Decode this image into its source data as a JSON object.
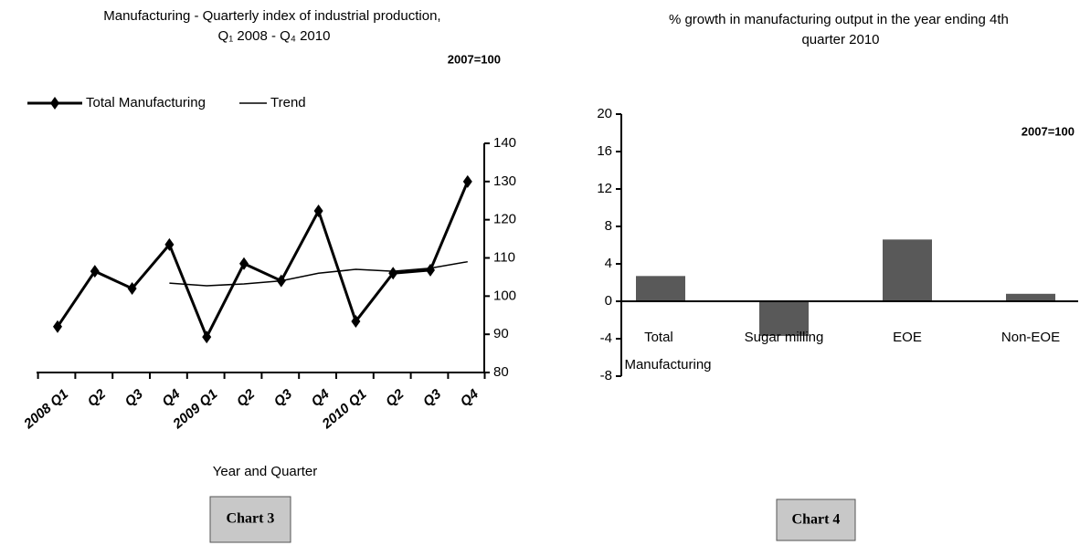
{
  "chart_data": [
    {
      "type": "line",
      "title": "Manufacturing - Quarterly index of industrial production, Q₁ 2008 - Q₄ 2010",
      "annotation": "2007=100",
      "xlabel": "Year and Quarter",
      "caption": "Chart 3",
      "categories": [
        "2008 Q1",
        "Q2",
        "Q3",
        "Q4",
        "2009 Q1",
        "Q2",
        "Q3",
        "Q4",
        "2010 Q1",
        "Q2",
        "Q3",
        "Q4"
      ],
      "series": [
        {
          "name": "Total Manufacturing",
          "color": "#000000",
          "values": [
            92,
            106.5,
            102,
            113.5,
            89.3,
            108.5,
            104,
            122.3,
            93.4,
            106,
            106.8,
            130
          ]
        },
        {
          "name": "Trend",
          "color": "#000000",
          "values": [
            null,
            null,
            null,
            103.4,
            102.7,
            103.2,
            104,
            106,
            107,
            106.5,
            107.3,
            109
          ]
        }
      ],
      "ylim": [
        80,
        140
      ],
      "yticks": [
        80,
        90,
        100,
        110,
        120,
        130,
        140
      ]
    },
    {
      "type": "bar",
      "title": "% growth in manufacturing output in the year ending 4th quarter 2010",
      "annotation": "2007=100",
      "caption": "Chart 4",
      "categories": [
        "Total Manufacturing",
        "Sugar milling",
        "EOE",
        "Non-EOE"
      ],
      "values": [
        2.7,
        -3.7,
        6.6,
        0.8
      ],
      "color": "#595959",
      "ylim": [
        -8,
        20
      ],
      "yticks": [
        -8,
        -4,
        0,
        4,
        8,
        12,
        16,
        20
      ]
    }
  ]
}
